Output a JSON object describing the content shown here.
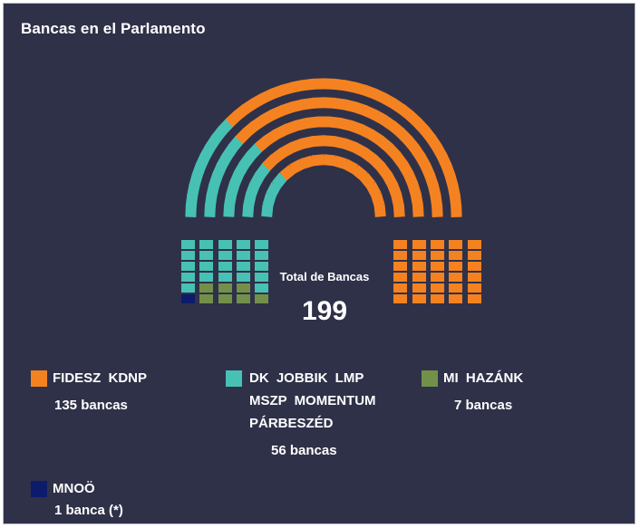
{
  "title": "Bancas en el Parlamento",
  "total_label": "Total de Bancas",
  "total_value": "199",
  "legend": [
    {
      "name_lines": [
        "FIDESZ KDNP"
      ],
      "count": "135 bancas",
      "color": "#f58220"
    },
    {
      "name_lines": [
        "DK JOBBIK LMP",
        "MSZP MOMENTUM",
        "PÁRBESZÉD"
      ],
      "count": "56 bancas",
      "color": "#47c1b4"
    },
    {
      "name_lines": [
        "MI HAZÁNK"
      ],
      "count": "7 bancas",
      "color": "#73904a"
    },
    {
      "name_lines": [
        "MNOÖ"
      ],
      "count": "1 banca (*)",
      "color": "#0d1b6b"
    }
  ],
  "chart_data": {
    "type": "parliament",
    "title": "Bancas en el Parlamento",
    "total": 199,
    "series": [
      {
        "name": "FIDESZ KDNP",
        "seats": 135,
        "color": "#f58220"
      },
      {
        "name": "DK JOBBIK LMP MSZP MOMENTUM PÁRBESZÉD",
        "seats": 56,
        "color": "#47c1b4"
      },
      {
        "name": "MI HAZÁNK",
        "seats": 7,
        "color": "#73904a"
      },
      {
        "name": "MNOÖ",
        "seats": 1,
        "color": "#0d1b6b"
      }
    ]
  }
}
